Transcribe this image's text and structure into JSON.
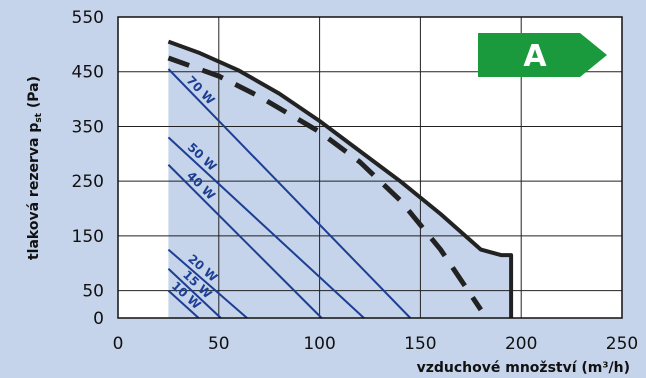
{
  "chart_data": {
    "type": "line",
    "xlabel": "vzduchové množství (m³/h)",
    "ylabel": "tlaková rezerva p",
    "ylabel_sub": "st",
    "ylabel_suffix": " (Pa)",
    "xlim": [
      0,
      250
    ],
    "ylim": [
      0,
      550
    ],
    "x_ticks": [
      0,
      50,
      100,
      150,
      200,
      250
    ],
    "y_ticks": [
      0,
      50,
      150,
      250,
      350,
      450,
      550
    ],
    "grid": true,
    "badge": {
      "label": "A",
      "color": "#1a9a3c"
    },
    "colors": {
      "plot_bg": "#ffffff",
      "page_bg": "#c5d4ea",
      "area": "#c5d4ea",
      "power_lines": "#1d3f93",
      "curves": "#222222"
    },
    "envelope": {
      "x": [
        25,
        40,
        60,
        80,
        100,
        120,
        140,
        160,
        180,
        190,
        195,
        195
      ],
      "y": [
        505,
        485,
        452,
        410,
        360,
        305,
        250,
        190,
        125,
        115,
        115,
        0
      ]
    },
    "dashed_curve": {
      "x": [
        25,
        50,
        70,
        100,
        120,
        140,
        160,
        180
      ],
      "y": [
        475,
        442,
        405,
        340,
        285,
        215,
        125,
        15
      ]
    },
    "power_lines": [
      {
        "label": "70 W",
        "x": [
          25,
          145
        ],
        "y": [
          455,
          0
        ]
      },
      {
        "label": "50 W",
        "x": [
          25,
          122
        ],
        "y": [
          330,
          0
        ]
      },
      {
        "label": "40 W",
        "x": [
          25,
          101
        ],
        "y": [
          280,
          0
        ]
      },
      {
        "label": "20 W",
        "x": [
          25,
          64
        ],
        "y": [
          125,
          0
        ]
      },
      {
        "label": "15 W",
        "x": [
          25,
          51
        ],
        "y": [
          90,
          0
        ]
      },
      {
        "label": "10 W",
        "x": [
          25,
          40
        ],
        "y": [
          50,
          0
        ]
      }
    ]
  }
}
